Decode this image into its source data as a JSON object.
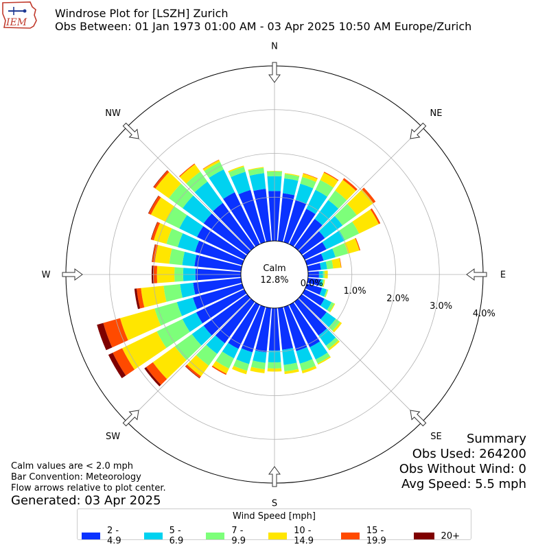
{
  "header": {
    "logo_text": "IEM",
    "title_line1": "Windrose Plot for [LSZH] Zurich",
    "title_line2": "Obs Between: 01 Jan 1973 01:00 AM - 03 Apr 2025 10:50 AM Europe/Zurich"
  },
  "summary": {
    "heading": "Summary",
    "obs_used": "Obs Used: 264200",
    "obs_without_wind": "Obs Without Wind: 0",
    "avg_speed": "Avg Speed: 5.5 mph"
  },
  "notes": {
    "line1": "Calm values are < 2.0 mph",
    "line2": "Bar Convention: Meteorology",
    "line3": "Flow arrows relative to plot center.",
    "generated": "Generated: 03 Apr 2025"
  },
  "chart_data": {
    "type": "windrose",
    "calm_label": "Calm",
    "calm_value": "12.8%",
    "radial_ticks": [
      "0.0%",
      "1.0%",
      "2.0%",
      "3.0%",
      "4.0%"
    ],
    "radial_max": 4.0,
    "calm_radius_fraction": 0.1613,
    "compass_labels": [
      "N",
      "NE",
      "E",
      "SE",
      "S",
      "SW",
      "W",
      "NW"
    ],
    "legend_title": "Wind Speed [mph]",
    "speed_bins": [
      {
        "label": "2 - 4.9",
        "color": "#0a32ff"
      },
      {
        "label": "5 - 6.9",
        "color": "#00d2f0"
      },
      {
        "label": "7 - 9.9",
        "color": "#7dff7a"
      },
      {
        "label": "10 - 14.9",
        "color": "#ffe600"
      },
      {
        "label": "15 - 19.9",
        "color": "#ff4a00"
      },
      {
        "label": "20+",
        "color": "#7f0000"
      }
    ],
    "directions_deg": [
      0,
      10,
      20,
      30,
      40,
      50,
      60,
      70,
      80,
      90,
      100,
      110,
      120,
      130,
      140,
      150,
      160,
      170,
      180,
      190,
      200,
      210,
      220,
      230,
      240,
      250,
      260,
      270,
      280,
      290,
      300,
      310,
      320,
      330,
      340,
      350
    ],
    "cumulative": [
      [
        1.14,
        1.48,
        1.59,
        1.6,
        1.6,
        1.6
      ],
      [
        1.1,
        1.44,
        1.54,
        1.56,
        1.56,
        1.56
      ],
      [
        1.0,
        1.39,
        1.55,
        1.63,
        1.64,
        1.64
      ],
      [
        0.9,
        1.38,
        1.63,
        1.82,
        1.84,
        1.84
      ],
      [
        0.8,
        1.33,
        1.6,
        1.9,
        1.95,
        1.95
      ],
      [
        0.65,
        1.15,
        1.55,
        2.02,
        2.08,
        2.08
      ],
      [
        0.55,
        1.02,
        1.38,
        1.88,
        1.92,
        1.92
      ],
      [
        0.4,
        0.68,
        0.98,
        1.25,
        1.27,
        1.27
      ],
      [
        0.3,
        0.44,
        0.58,
        0.76,
        0.77,
        0.77
      ],
      [
        0.25,
        0.34,
        0.38,
        0.45,
        0.45,
        0.45
      ],
      [
        0.28,
        0.34,
        0.37,
        0.39,
        0.39,
        0.39
      ],
      [
        0.36,
        0.47,
        0.5,
        0.51,
        0.51,
        0.51
      ],
      [
        0.5,
        0.68,
        0.75,
        0.77,
        0.77,
        0.77
      ],
      [
        0.7,
        0.96,
        1.08,
        1.13,
        1.13,
        1.13
      ],
      [
        0.95,
        1.24,
        1.33,
        1.37,
        1.37,
        1.37
      ],
      [
        1.08,
        1.39,
        1.49,
        1.52,
        1.52,
        1.52
      ],
      [
        1.05,
        1.35,
        1.52,
        1.58,
        1.58,
        1.58
      ],
      [
        0.96,
        1.31,
        1.46,
        1.52,
        1.52,
        1.52
      ],
      [
        0.97,
        1.24,
        1.38,
        1.45,
        1.45,
        1.45
      ],
      [
        1.02,
        1.26,
        1.41,
        1.5,
        1.5,
        1.5
      ],
      [
        1.08,
        1.36,
        1.52,
        1.6,
        1.6,
        1.6
      ],
      [
        1.12,
        1.36,
        1.62,
        1.75,
        1.78,
        1.78
      ],
      [
        1.17,
        1.47,
        1.8,
        2.1,
        2.15,
        2.16
      ],
      [
        1.23,
        1.56,
        2.04,
        2.66,
        2.85,
        2.9
      ],
      [
        1.22,
        1.57,
        2.22,
        3.1,
        3.34,
        3.45
      ],
      [
        1.17,
        1.55,
        2.08,
        2.9,
        3.3,
        3.45
      ],
      [
        1.1,
        1.4,
        1.78,
        2.3,
        2.4,
        2.45
      ],
      [
        1.04,
        1.32,
        1.52,
        1.92,
        2.0,
        2.04
      ],
      [
        1.07,
        1.35,
        1.65,
        1.98,
        2.04,
        2.05
      ],
      [
        1.12,
        1.53,
        1.8,
        2.1,
        2.16,
        2.17
      ],
      [
        1.2,
        1.65,
        2.0,
        2.37,
        2.43,
        2.44
      ],
      [
        1.23,
        1.82,
        2.21,
        2.59,
        2.64,
        2.65
      ],
      [
        1.25,
        1.85,
        2.13,
        2.34,
        2.36,
        2.36
      ],
      [
        1.32,
        1.9,
        2.09,
        2.14,
        2.15,
        2.15
      ],
      [
        1.24,
        1.67,
        1.79,
        1.82,
        1.82,
        1.82
      ],
      [
        1.2,
        1.56,
        1.68,
        1.7,
        1.7,
        1.7
      ]
    ]
  }
}
